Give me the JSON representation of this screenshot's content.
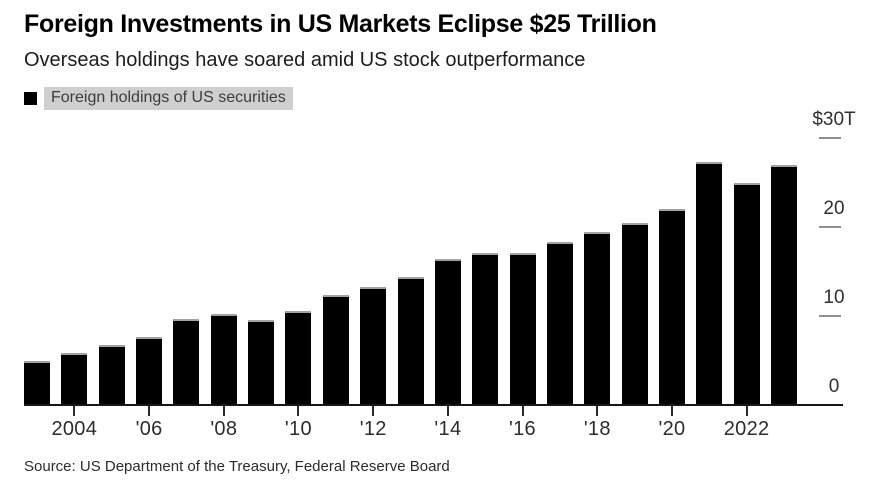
{
  "header": {
    "title": "Foreign Investments in US Markets Eclipse $25 Trillion",
    "subtitle": "Overseas holdings have soared amid US stock outperformance"
  },
  "legend": {
    "swatch_color": "#000000",
    "highlight_color": "#cfcfcf",
    "label": "Foreign holdings of US securities"
  },
  "chart_data": {
    "type": "bar",
    "title": "Foreign Investments in US Markets Eclipse $25 Trillion",
    "subtitle": "Overseas holdings have soared amid US stock outperformance",
    "series_name": "Foreign holdings of US securities",
    "unit": "trillions of US dollars",
    "x": [
      2003,
      2004,
      2005,
      2006,
      2007,
      2008,
      2009,
      2010,
      2011,
      2012,
      2013,
      2014,
      2015,
      2016,
      2017,
      2018,
      2019,
      2020,
      2021,
      2022,
      2023
    ],
    "values": [
      4.9,
      5.9,
      6.8,
      7.7,
      9.7,
      10.2,
      9.6,
      10.6,
      12.4,
      13.3,
      14.4,
      16.4,
      17.1,
      17.1,
      18.3,
      19.4,
      20.5,
      22.0,
      27.3,
      25.0,
      27.0
    ],
    "bar_color": "#000000",
    "grid": "off",
    "y_axis_side": "right",
    "ylim": [
      0,
      30
    ],
    "yticks": {
      "values": [
        0,
        10,
        20,
        30
      ],
      "labels": [
        "0",
        "10",
        "20",
        "$30T"
      ]
    },
    "xticks": {
      "values": [
        2004,
        2006,
        2008,
        2010,
        2012,
        2014,
        2016,
        2018,
        2020,
        2022
      ],
      "labels": [
        "2004",
        "'06",
        "'08",
        "'10",
        "'12",
        "'14",
        "'16",
        "'18",
        "'20",
        "2022"
      ]
    }
  },
  "footer": {
    "source": "Source: US Department of the Treasury, Federal Reserve Board"
  }
}
